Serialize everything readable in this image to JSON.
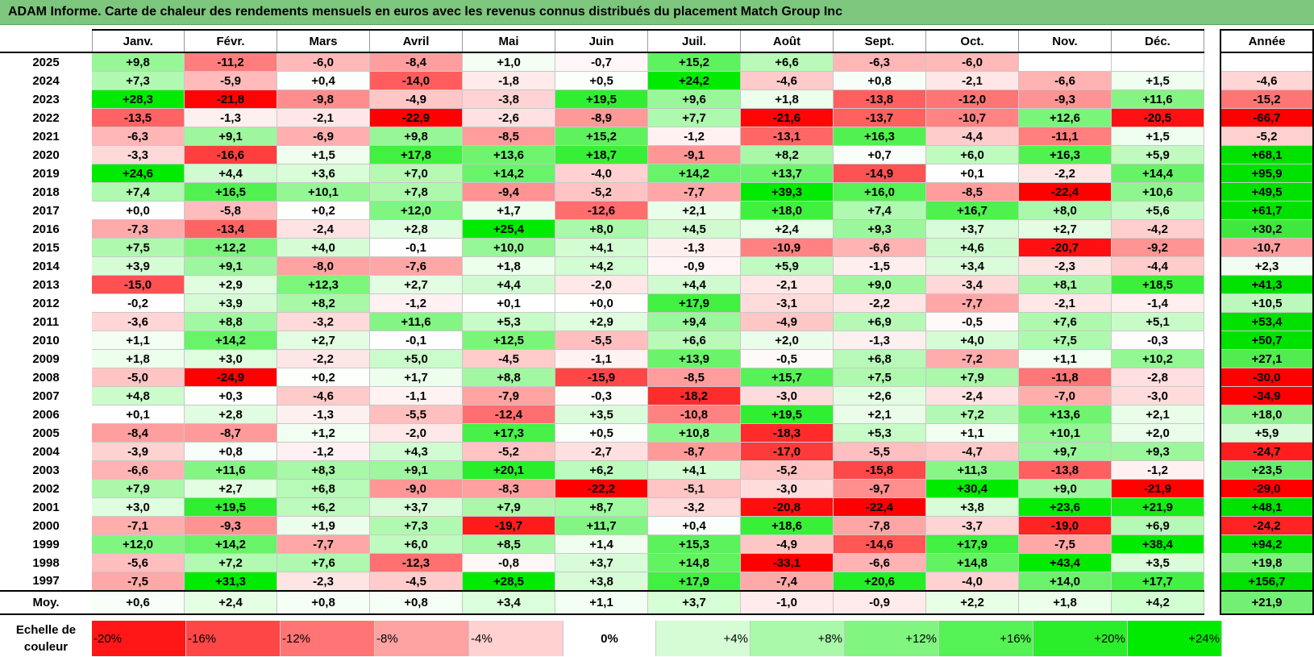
{
  "title": "ADAM Informe. Carte de chaleur des rendements mensuels en euros avec les revenus connus distribués du placement Match Group Inc",
  "colors": {
    "title_bg": "#7dc67d",
    "neg_max": "#ff0000",
    "pos_max": "#00e600",
    "neutral": "#ffffff"
  },
  "chart_data": {
    "type": "heatmap",
    "columns": [
      "Janv.",
      "Févr.",
      "Mars",
      "Avril",
      "Mai",
      "Juin",
      "Juil.",
      "Août",
      "Sept.",
      "Oct.",
      "Nov.",
      "Déc."
    ],
    "year_header": "Année",
    "years": [
      "2025",
      "2024",
      "2023",
      "2022",
      "2021",
      "2020",
      "2019",
      "2018",
      "2017",
      "2016",
      "2015",
      "2014",
      "2013",
      "2012",
      "2011",
      "2010",
      "2009",
      "2008",
      "2007",
      "2006",
      "2005",
      "2004",
      "2003",
      "2002",
      "2001",
      "2000",
      "1999",
      "1998",
      "1997"
    ],
    "values": [
      [
        "+9,8",
        "-11,2",
        "-6,0",
        "-8,4",
        "+1,0",
        "-0,7",
        "+15,2",
        "+6,6",
        "-6,3",
        "-6,0",
        "",
        ""
      ],
      [
        "+7,3",
        "-5,9",
        "+0,4",
        "-14,0",
        "-1,8",
        "+0,5",
        "+24,2",
        "-4,6",
        "+0,8",
        "-2,1",
        "-6,6",
        "+1,5"
      ],
      [
        "+28,3",
        "-21,8",
        "-9,8",
        "-4,9",
        "-3,8",
        "+19,5",
        "+9,6",
        "+1,8",
        "-13,8",
        "-12,0",
        "-9,3",
        "+11,6"
      ],
      [
        "-13,5",
        "-1,3",
        "-2,1",
        "-22,9",
        "-2,6",
        "-8,9",
        "+7,7",
        "-21,6",
        "-13,7",
        "-10,7",
        "+12,6",
        "-20,5"
      ],
      [
        "-6,3",
        "+9,1",
        "-6,9",
        "+9,8",
        "-8,5",
        "+15,2",
        "-1,2",
        "-13,1",
        "+16,3",
        "-4,4",
        "-11,1",
        "+1,5"
      ],
      [
        "-3,3",
        "-16,6",
        "+1,5",
        "+17,8",
        "+13,6",
        "+18,7",
        "-9,1",
        "+8,2",
        "+0,7",
        "+6,0",
        "+16,3",
        "+5,9"
      ],
      [
        "+24,6",
        "+4,4",
        "+3,6",
        "+7,0",
        "+14,2",
        "-4,0",
        "+14,2",
        "+13,7",
        "-14,9",
        "+0,1",
        "-2,2",
        "+14,4"
      ],
      [
        "+7,4",
        "+16,5",
        "+10,1",
        "+7,8",
        "-9,4",
        "-5,2",
        "-7,7",
        "+39,3",
        "+16,0",
        "-8,5",
        "-22,4",
        "+10,6"
      ],
      [
        "+0,0",
        "-5,8",
        "+0,2",
        "+12,0",
        "+1,7",
        "-12,6",
        "+2,1",
        "+18,0",
        "+7,4",
        "+16,7",
        "+8,0",
        "+5,6"
      ],
      [
        "-7,3",
        "-13,4",
        "-2,4",
        "+2,8",
        "+25,4",
        "+8,0",
        "+4,5",
        "+2,4",
        "+9,3",
        "+3,7",
        "+2,7",
        "-4,2"
      ],
      [
        "+7,5",
        "+12,2",
        "+4,0",
        "-0,1",
        "+10,0",
        "+4,1",
        "-1,3",
        "-10,9",
        "-6,6",
        "+4,6",
        "-20,7",
        "-9,2"
      ],
      [
        "+3,9",
        "+9,1",
        "-8,0",
        "-7,6",
        "+1,8",
        "+4,2",
        "-0,9",
        "+5,9",
        "-1,5",
        "+3,4",
        "-2,3",
        "-4,4"
      ],
      [
        "-15,0",
        "+2,9",
        "+12,3",
        "+2,7",
        "+4,4",
        "-2,0",
        "+4,4",
        "-2,1",
        "+9,0",
        "-3,4",
        "+8,1",
        "+18,5"
      ],
      [
        "-0,2",
        "+3,9",
        "+8,2",
        "-1,2",
        "+0,1",
        "+0,0",
        "+17,9",
        "-3,1",
        "-2,2",
        "-7,7",
        "-2,1",
        "-1,4"
      ],
      [
        "-3,6",
        "+8,8",
        "-3,2",
        "+11,6",
        "+5,3",
        "+2,9",
        "+9,4",
        "-4,9",
        "+6,9",
        "-0,5",
        "+7,6",
        "+5,1"
      ],
      [
        "+1,1",
        "+14,2",
        "+2,7",
        "-0,1",
        "+12,5",
        "-5,5",
        "+6,6",
        "+2,0",
        "-1,3",
        "+4,0",
        "+7,5",
        "-0,3"
      ],
      [
        "+1,8",
        "+3,0",
        "-2,2",
        "+5,0",
        "-4,5",
        "-1,1",
        "+13,9",
        "-0,5",
        "+6,8",
        "-7,2",
        "+1,1",
        "+10,2"
      ],
      [
        "-5,0",
        "-24,9",
        "+0,2",
        "+1,7",
        "+8,8",
        "-15,9",
        "-8,5",
        "+15,7",
        "+7,5",
        "+7,9",
        "-11,8",
        "-2,8"
      ],
      [
        "+4,8",
        "+0,3",
        "-4,6",
        "-1,1",
        "-7,9",
        "-0,3",
        "-18,2",
        "-3,0",
        "+2,6",
        "-2,4",
        "-7,0",
        "-3,0"
      ],
      [
        "+0,1",
        "+2,8",
        "-1,3",
        "-5,5",
        "-12,4",
        "+3,5",
        "-10,8",
        "+19,5",
        "+2,1",
        "+7,2",
        "+13,6",
        "+2,1"
      ],
      [
        "-8,4",
        "-8,7",
        "+1,2",
        "-2,0",
        "+17,3",
        "+0,5",
        "+10,8",
        "-18,3",
        "+5,3",
        "+1,1",
        "+10,1",
        "+2,0"
      ],
      [
        "-3,9",
        "+0,8",
        "-1,2",
        "+4,3",
        "-5,2",
        "-2,7",
        "-8,7",
        "-17,0",
        "-5,5",
        "-4,7",
        "+9,7",
        "+9,3"
      ],
      [
        "-6,6",
        "+11,6",
        "+8,3",
        "+9,1",
        "+20,1",
        "+6,2",
        "+4,1",
        "-5,2",
        "-15,8",
        "+11,3",
        "-13,8",
        "-1,2"
      ],
      [
        "+7,9",
        "+2,7",
        "+6,8",
        "-9,0",
        "-8,3",
        "-22,2",
        "-5,1",
        "-3,0",
        "-9,7",
        "+30,4",
        "+9,0",
        "-21,9"
      ],
      [
        "+3,0",
        "+19,5",
        "+6,2",
        "+3,7",
        "+7,9",
        "+8,7",
        "-3,2",
        "-20,8",
        "-22,4",
        "+3,8",
        "+23,6",
        "+21,9"
      ],
      [
        "-7,1",
        "-9,3",
        "+1,9",
        "+7,3",
        "-19,7",
        "+11,7",
        "+0,4",
        "+18,6",
        "-7,8",
        "-3,7",
        "-19,0",
        "+6,9"
      ],
      [
        "+12,0",
        "+14,2",
        "-7,7",
        "+6,0",
        "+8,5",
        "+1,4",
        "+15,3",
        "-4,9",
        "-14,6",
        "+17,9",
        "-7,5",
        "+38,4"
      ],
      [
        "-5,6",
        "+7,2",
        "+7,6",
        "-12,3",
        "-0,8",
        "+3,7",
        "+14,8",
        "-33,1",
        "-6,6",
        "+14,8",
        "+43,4",
        "+3,5"
      ],
      [
        "-7,5",
        "+31,3",
        "-2,3",
        "-4,5",
        "+28,5",
        "+3,8",
        "+17,9",
        "-7,4",
        "+20,6",
        "-4,0",
        "+14,0",
        "+17,7"
      ]
    ],
    "annual": [
      "",
      "-4,6",
      "-15,2",
      "-66,7",
      "-5,2",
      "+68,1",
      "+95,9",
      "+49,5",
      "+61,7",
      "+30,2",
      "-10,7",
      "+2,3",
      "+41,3",
      "+10,5",
      "+53,4",
      "+50,7",
      "+27,1",
      "-30,0",
      "-34,9",
      "+18,0",
      "+5,9",
      "-24,7",
      "+23,5",
      "-29,0",
      "+48,1",
      "-24,2",
      "+94,2",
      "+19,8",
      "+156,7"
    ],
    "average_label": "Moy.",
    "average": [
      "+0,6",
      "+2,4",
      "+0,8",
      "+0,8",
      "+3,4",
      "+1,1",
      "+3,7",
      "-1,0",
      "-0,9",
      "+2,2",
      "+1,8",
      "+4,2"
    ],
    "average_annual": "+21,9",
    "scale_label": "Echelle de couleur",
    "scale": [
      "-20%",
      "-16%",
      "-12%",
      "-8%",
      "-4%",
      "0%",
      "+4%",
      "+8%",
      "+12%",
      "+16%",
      "+20%",
      "+24%"
    ],
    "scale_values": [
      -20,
      -16,
      -12,
      -8,
      -4,
      0,
      4,
      8,
      12,
      16,
      20,
      24
    ],
    "color_range": [
      -20,
      24
    ]
  }
}
